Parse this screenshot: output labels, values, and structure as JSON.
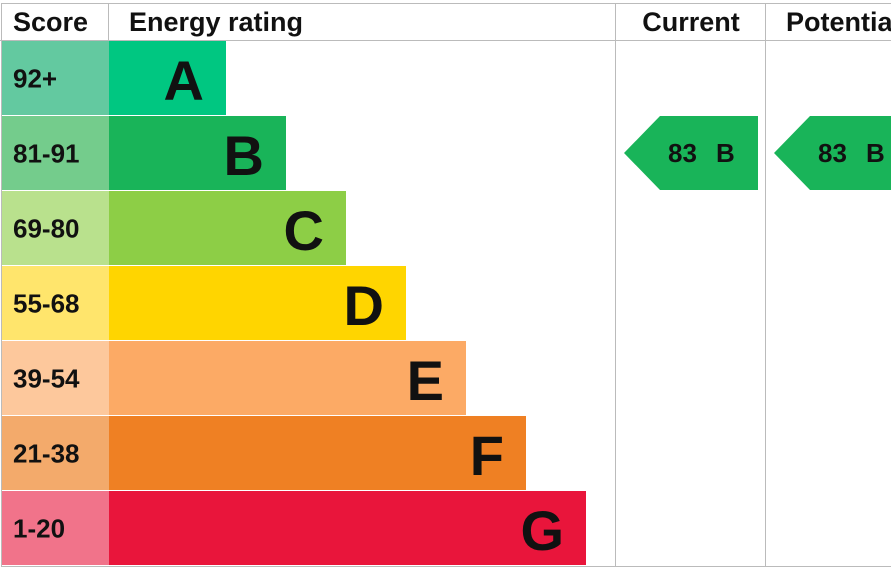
{
  "header": {
    "score": "Score",
    "rating": "Energy rating",
    "current": "Current",
    "potential": "Potential"
  },
  "bands": [
    {
      "score": "92+",
      "letter": "A",
      "color": "#00c781",
      "score_color": "#63c9a0"
    },
    {
      "score": "81-91",
      "letter": "B",
      "color": "#19b459",
      "score_color": "#74cc8c"
    },
    {
      "score": "69-80",
      "letter": "C",
      "color": "#8dce46",
      "score_color": "#b9e18d"
    },
    {
      "score": "55-68",
      "letter": "D",
      "color": "#ffd500",
      "score_color": "#ffe56c"
    },
    {
      "score": "39-54",
      "letter": "E",
      "color": "#fcaa65",
      "score_color": "#fdc89c"
    },
    {
      "score": "21-38",
      "letter": "F",
      "color": "#ef8023",
      "score_color": "#f3aa6b"
    },
    {
      "score": "1-20",
      "letter": "G",
      "color": "#e9153b",
      "score_color": "#f1738a"
    }
  ],
  "current": {
    "score": 83,
    "rating": "B"
  },
  "potential": {
    "score": 83,
    "rating": "B"
  }
}
